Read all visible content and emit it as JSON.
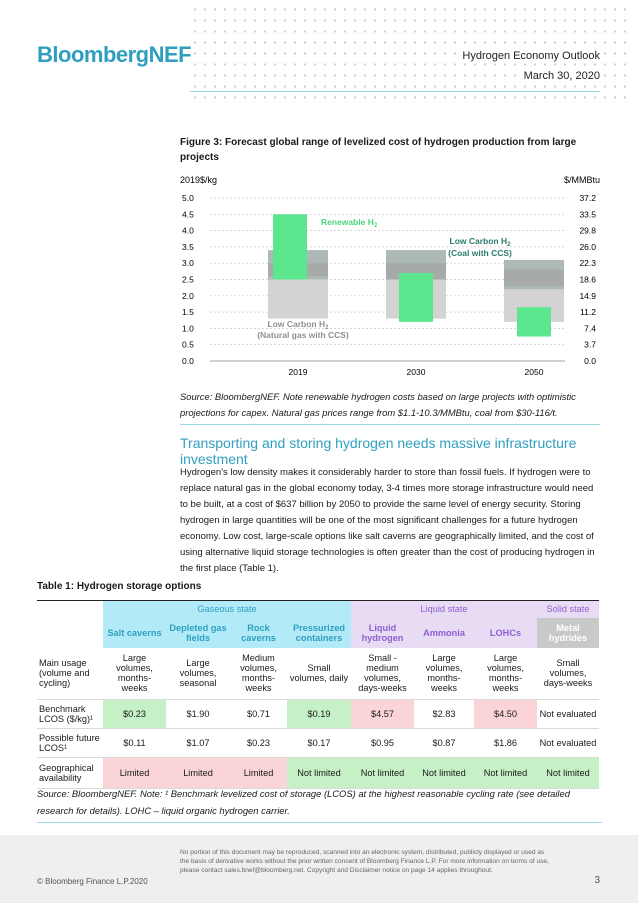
{
  "header": {
    "logo": "BloombergNEF",
    "report_title": "Hydrogen Economy Outlook",
    "date": "March 30, 2020"
  },
  "figure": {
    "title": "Figure 3: Forecast global range of levelized cost of hydrogen production from large projects",
    "source": "Source: BloombergNEF. Note renewable hydrogen costs based on large projects with optimistic projections for capex. Natural gas prices range from $1.1-10.3/MMBtu, coal from $30-116/t."
  },
  "chart_data": {
    "type": "bar",
    "title": "Figure 3: Forecast global range of levelized cost of hydrogen production from large projects",
    "ylabel_left": "2019$/kg",
    "ylabel_right": "$/MMBtu",
    "ylim": [
      0,
      5
    ],
    "left_ticks": [
      "0.0",
      "0.5",
      "1.0",
      "1.5",
      "2.0",
      "2.5",
      "3.0",
      "3.5",
      "4.0",
      "4.5",
      "5.0"
    ],
    "right_ticks": [
      "0.0",
      "3.7",
      "7.4",
      "11.2",
      "14.9",
      "18.6",
      "22.3",
      "26.0",
      "29.8",
      "33.5",
      "37.2"
    ],
    "categories": [
      "2019",
      "2030",
      "2050"
    ],
    "series": [
      {
        "name": "Low Carbon H2 (Natural gas with CCS)",
        "color": "#d3d3d3",
        "ranges": [
          [
            1.3,
            3.4
          ],
          [
            1.3,
            3.4
          ],
          [
            1.2,
            3.1
          ]
        ],
        "inner": [
          [
            2.6,
            3.0
          ],
          [
            2.5,
            3.0
          ],
          [
            2.3,
            2.8
          ]
        ],
        "inner_color": "#a0a0a0"
      },
      {
        "name": "Low Carbon H2 (Coal with CCS)",
        "color": "#a9b6b2",
        "ranges": [
          [
            2.5,
            3.4
          ],
          [
            2.5,
            3.4
          ],
          [
            2.2,
            3.1
          ]
        ]
      },
      {
        "name": "Renewable H2",
        "color": "#5ce68d",
        "ranges": [
          [
            2.5,
            4.5
          ],
          [
            1.2,
            2.7
          ],
          [
            0.75,
            1.65
          ]
        ]
      }
    ],
    "labels": {
      "renewable": "Renewable H",
      "renewable_sub": "2",
      "coal_l1": "Low Carbon H",
      "coal_sub": "2",
      "coal_l2": "(Coal with CCS)",
      "gas_l1": "Low Carbon H",
      "gas_sub": "2",
      "gas_l2": "(Natural gas with CCS)"
    }
  },
  "section": {
    "heading": "Transporting and storing hydrogen needs massive infrastructure investment",
    "body": "Hydrogen's low density makes it considerably harder to store than fossil fuels. If hydrogen were to replace natural gas in the global economy today, 3-4 times more storage infrastructure would need to be built, at a cost of $637 billion by 2050 to provide the same level of energy security. Storing hydrogen in large quantities will be one of the most significant challenges for a future hydrogen economy. Low cost, large-scale options like salt caverns are geographically limited, and the cost of using alternative liquid storage technologies is often greater than the cost of producing hydrogen in the first place (Table 1)."
  },
  "table": {
    "title": "Table 1: Hydrogen storage options",
    "groups": [
      "Gaseous state",
      "Liquid state",
      "Solid state"
    ],
    "columns": [
      "Salt caverns",
      "Depleted gas fields",
      "Rock caverns",
      "Pressurized containers",
      "Liquid hydrogen",
      "Ammonia",
      "LOHCs",
      "Metal hydrides"
    ],
    "rows": [
      {
        "label": "Main usage (volume and cycling)",
        "cells": [
          "Large volumes, months-weeks",
          "Large volumes, seasonal",
          "Medium volumes, months-weeks",
          "Small volumes, daily",
          "Small - medium volumes, days-weeks",
          "Large volumes, months-weeks",
          "Large volumes, months-weeks",
          "Small volumes, days-weeks"
        ]
      },
      {
        "label": "Benchmark LCOS ($/kg)¹",
        "cells": [
          "$0.23",
          "$1.90",
          "$0.71",
          "$0.19",
          "$4.57",
          "$2.83",
          "$4.50",
          "Not evaluated"
        ]
      },
      {
        "label": "Possible future LCOS¹",
        "cells": [
          "$0.11",
          "$1.07",
          "$0.23",
          "$0.17",
          "$0.95",
          "$0.87",
          "$1.86",
          "Not evaluated"
        ]
      },
      {
        "label": "Geographical availability",
        "cells": [
          "Limited",
          "Limited",
          "Limited",
          "Not limited",
          "Not limited",
          "Not limited",
          "Not limited",
          "Not limited"
        ]
      }
    ],
    "source": "Source: BloombergNEF. Note: ¹ Benchmark levelized cost of storage (LCOS) at the highest reasonable cycling rate (see detailed research for details). LOHC – liquid organic hydrogen carrier."
  },
  "footer": {
    "copyright": "© Bloomberg Finance L.P.2020",
    "disclaimer": "No portion of this document may be reproduced, scanned into an electronic system, distributed, publicly displayed or used as the basis of derivative works without the prior written consent of Bloomberg Finance L.P.  For more information on terms of use, please contact sales.bnef@bloomberg.net. Copyright and Disclaimer notice on page 14 applies throughout.",
    "page": "3"
  }
}
